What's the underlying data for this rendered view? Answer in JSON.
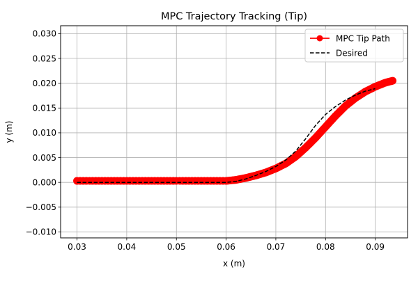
{
  "chart_data": {
    "type": "line",
    "title": "MPC Trajectory Tracking (Tip)",
    "xlabel": "x (m)",
    "ylabel": "y (m)",
    "xlim": [
      0.0267,
      0.0965
    ],
    "ylim": [
      -0.0112,
      0.0316
    ],
    "xticks": [
      0.03,
      0.04,
      0.05,
      0.06,
      0.07,
      0.08,
      0.09
    ],
    "xtick_labels": [
      "0.03",
      "0.04",
      "0.05",
      "0.06",
      "0.07",
      "0.08",
      "0.09"
    ],
    "yticks": [
      -0.01,
      -0.005,
      0.0,
      0.005,
      0.01,
      0.015,
      0.02,
      0.025,
      0.03
    ],
    "ytick_labels": [
      "−0.010",
      "−0.005",
      "0.000",
      "0.005",
      "0.010",
      "0.015",
      "0.020",
      "0.025",
      "0.030"
    ],
    "grid": true,
    "legend_position": "top-right",
    "series": [
      {
        "name": "MPC Tip Path",
        "color": "#ff0000",
        "style": "solid-line-with-circle-markers",
        "x": [
          0.03,
          0.035,
          0.04,
          0.045,
          0.05,
          0.055,
          0.06,
          0.062,
          0.064,
          0.066,
          0.068,
          0.07,
          0.072,
          0.074,
          0.076,
          0.078,
          0.08,
          0.082,
          0.084,
          0.086,
          0.088,
          0.09,
          0.092,
          0.0935
        ],
        "y": [
          0.0003,
          0.0003,
          0.0003,
          0.0003,
          0.0003,
          0.0003,
          0.0003,
          0.0005,
          0.0009,
          0.0014,
          0.002,
          0.0028,
          0.0038,
          0.0052,
          0.007,
          0.009,
          0.0112,
          0.0134,
          0.0154,
          0.017,
          0.0183,
          0.0193,
          0.0201,
          0.0205
        ]
      },
      {
        "name": "Desired",
        "color": "#000000",
        "style": "dashed-line",
        "x": [
          0.03,
          0.035,
          0.04,
          0.045,
          0.05,
          0.055,
          0.06,
          0.062,
          0.064,
          0.066,
          0.068,
          0.07,
          0.072,
          0.074,
          0.076,
          0.078,
          0.08,
          0.082,
          0.084,
          0.086,
          0.088,
          0.09
        ],
        "y": [
          0.0,
          0.0,
          0.0,
          0.0,
          0.0,
          0.0,
          0.0,
          0.0002,
          0.0007,
          0.0014,
          0.0022,
          0.0032,
          0.0045,
          0.0063,
          0.0088,
          0.0115,
          0.0137,
          0.0153,
          0.0166,
          0.0176,
          0.0184,
          0.0189
        ]
      }
    ]
  }
}
